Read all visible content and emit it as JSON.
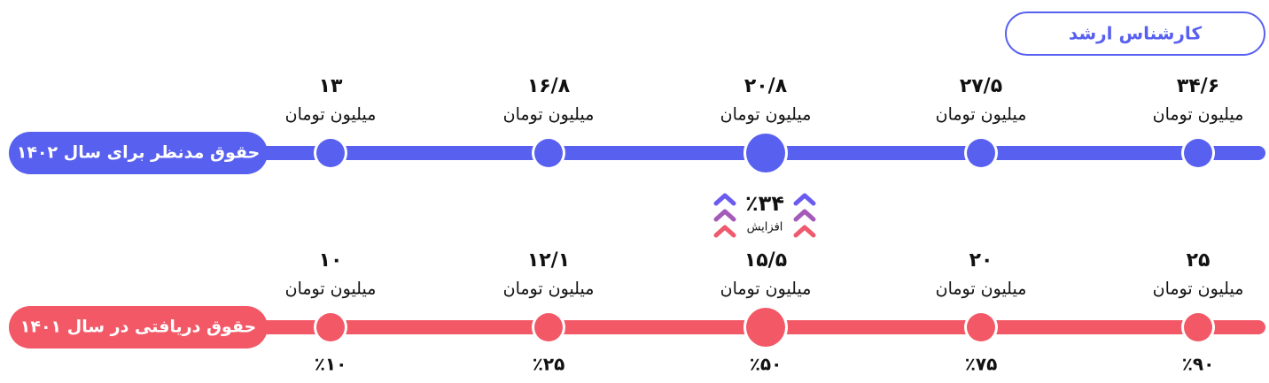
{
  "badge": "کارشناس ارشد",
  "unit": "میلیون تومان",
  "increase": {
    "value": "٪۳۴",
    "label": "افزایش"
  },
  "rows": [
    {
      "label": "حقوق مدنظر برای سال ۱۴۰۲",
      "values": [
        "۳۴/۶",
        "۲۷/۵",
        "۲۰/۸",
        "۱۶/۸",
        "۱۳"
      ]
    },
    {
      "label": "حقوق دریافتی در سال ۱۴۰۱",
      "values": [
        "۲۵",
        "۲۰",
        "۱۵/۵",
        "۱۲/۱",
        "۱۰"
      ],
      "percentiles": [
        "٪۹۰",
        "٪۷۵",
        "٪۵۰",
        "٪۲۵",
        "٪۱۰"
      ]
    }
  ]
}
